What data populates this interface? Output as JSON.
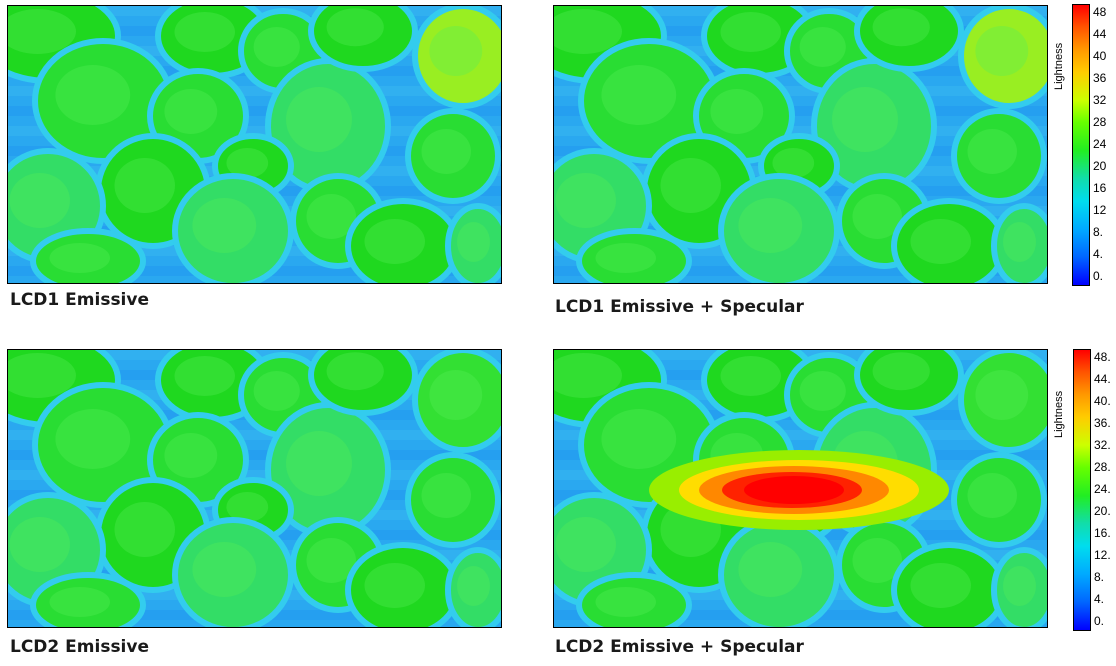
{
  "panels": [
    {
      "caption": "LCD1 Emissive",
      "highlight": false
    },
    {
      "caption": "LCD1 Emissive + Specular",
      "highlight": false
    },
    {
      "caption": "LCD2 Emissive",
      "highlight": false
    },
    {
      "caption": "LCD2 Emissive + Specular",
      "highlight": true
    }
  ],
  "colorbars": [
    {
      "title": "Lightness",
      "ticks": [
        "48",
        "44",
        "40",
        "36",
        "32",
        "28",
        "24",
        "20",
        "16",
        "12",
        "8.",
        "4.",
        "0."
      ]
    },
    {
      "title": "Lightness",
      "ticks": [
        "48.",
        "44.",
        "40.",
        "36.",
        "32.",
        "28.",
        "24.",
        "20.",
        "16.",
        "12.",
        "8.",
        "4.",
        "0."
      ]
    }
  ],
  "colors": {
    "background_blue": "#2aa8f0",
    "fruit_green": "#22dd22",
    "highlight_red": "#ff1100"
  }
}
